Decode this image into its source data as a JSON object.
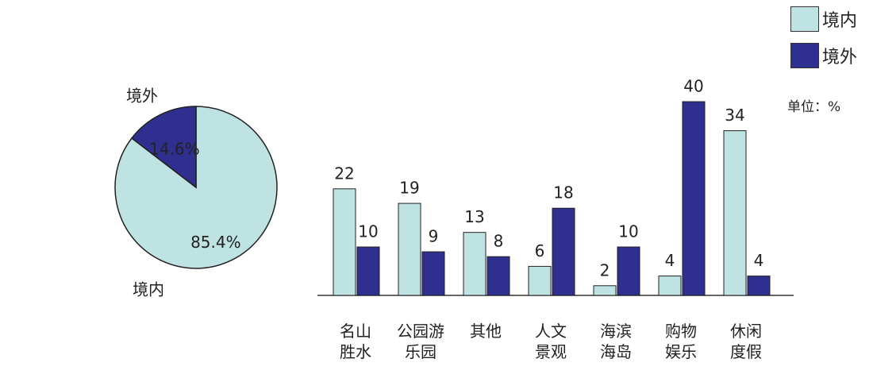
{
  "chart_data": [
    {
      "type": "pie",
      "categories": [
        "境内",
        "境外"
      ],
      "values": [
        85.4,
        14.6
      ],
      "value_labels": [
        "85.4%",
        "14.6%"
      ],
      "colors": [
        "#bfe3e3",
        "#2f2f8f"
      ]
    },
    {
      "type": "bar",
      "unit": "单位：%",
      "categories": [
        "名山\n胜水",
        "公园游\n乐园",
        "其他",
        "人文\n景观",
        "海滨\n海岛",
        "购物\n娱乐",
        "休闲\n度假"
      ],
      "series": [
        {
          "name": "境内",
          "color": "#bfe3e3",
          "values": [
            22,
            19,
            13,
            6,
            2,
            4,
            34
          ]
        },
        {
          "name": "境外",
          "color": "#2f2f8f",
          "values": [
            10,
            9,
            8,
            18,
            10,
            40,
            4
          ]
        }
      ]
    }
  ]
}
